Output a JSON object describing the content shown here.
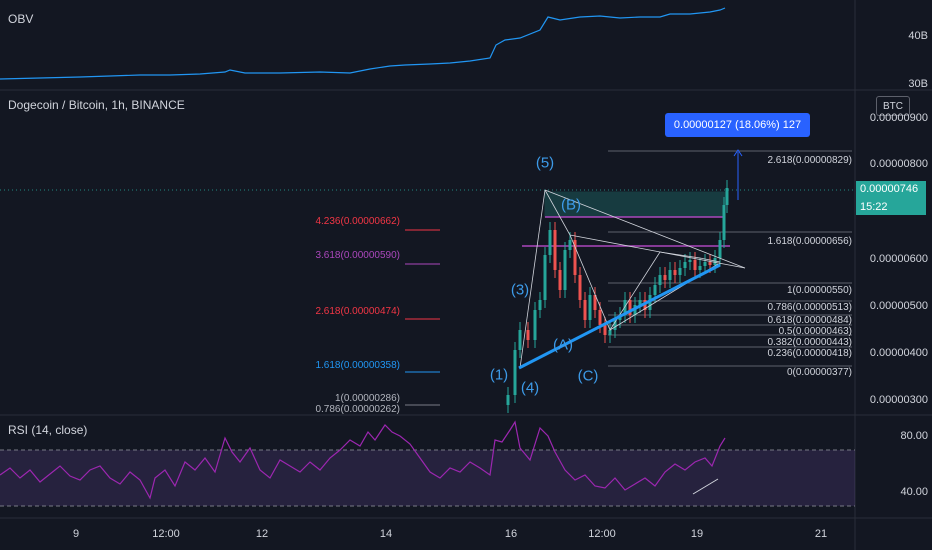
{
  "obv": {
    "label": "OBV",
    "scale": [
      "40B",
      "30B"
    ]
  },
  "main": {
    "symbol_label": "Dogecoin / Bitcoin, 1h, BINANCE",
    "currency_badge": "BTC",
    "scale": [
      "0.00000900",
      "0.00000800",
      "0.00000600",
      "0.00000500",
      "0.00000400",
      "0.00000300"
    ],
    "last_price": "0.00000746",
    "countdown": "15:22",
    "measure": "0.00000127 (18.06%) 127",
    "fib_left": [
      {
        "label": "4.236(0.00000662)",
        "color": "#f23645"
      },
      {
        "label": "3.618(0.00000590)",
        "color": "#ab47bc"
      },
      {
        "label": "2.618(0.00000474)",
        "color": "#f23645"
      },
      {
        "label": "1.618(0.00000358)",
        "color": "#2196f3"
      },
      {
        "label": "1(0.00000286)",
        "color": "#b2b5be"
      },
      {
        "label": "0.786(0.00000262)",
        "color": "#b2b5be"
      }
    ],
    "fib_right": [
      "2.618(0.00000829)",
      "1.618(0.00000656)",
      "1(0.00000550)",
      "0.786(0.00000513)",
      "0.618(0.00000484)",
      "0.5(0.00000463)",
      "0.382(0.00000443)",
      "0.236(0.00000418)",
      "0(0.00000377)"
    ],
    "waves": [
      "(1)",
      "(3)",
      "(4)",
      "(5)",
      "(A)",
      "(B)",
      "(C)"
    ]
  },
  "rsi": {
    "label": "RSI (14, close)",
    "scale": [
      "80.00",
      "40.00"
    ]
  },
  "time_axis": [
    "9",
    "12:00",
    "12",
    "14",
    "16",
    "12:00",
    "19",
    "21"
  ],
  "colors": {
    "background": "#131722",
    "up": "#26a69a",
    "down": "#ef5350",
    "trendline": "#2196f3",
    "obv_line": "#2196f3",
    "rsi_line": "#9c27b0",
    "measure": "#2962ff"
  }
}
